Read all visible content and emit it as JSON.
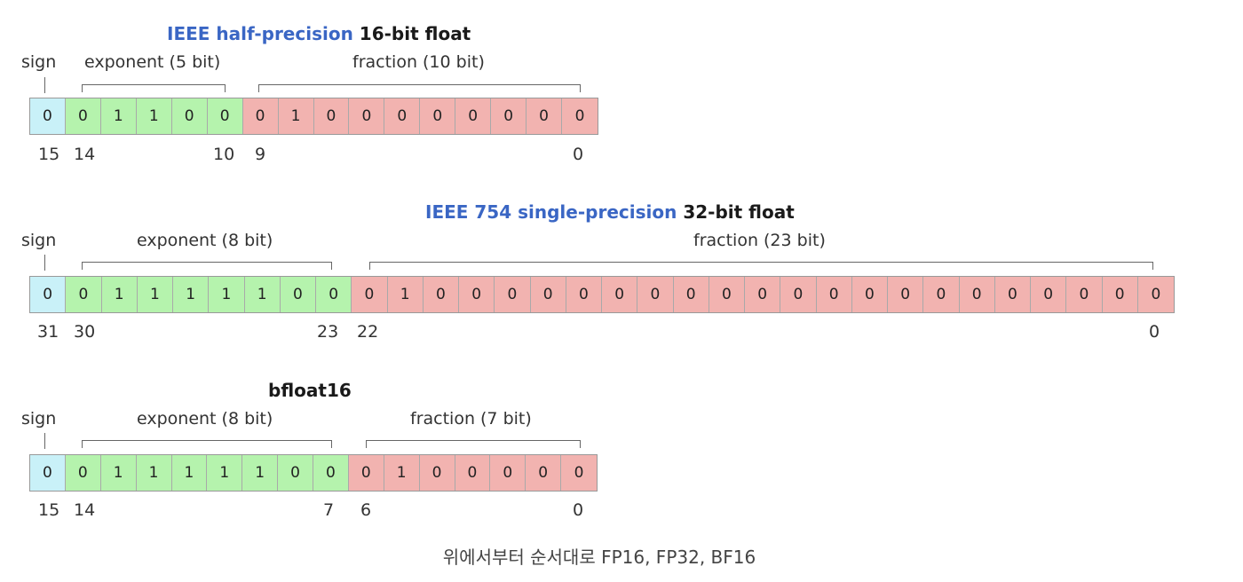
{
  "figures": [
    {
      "title_blue": "IEEE half-precision",
      "title_black": "16-bit float",
      "sign_label": "sign",
      "exponent_label": "exponent (5 bit)",
      "fraction_label": "fraction (10 bit)",
      "sign_bits": [
        "0"
      ],
      "exponent_bits": [
        "0",
        "1",
        "1",
        "0",
        "0"
      ],
      "fraction_bits": [
        "0",
        "1",
        "0",
        "0",
        "0",
        "0",
        "0",
        "0",
        "0",
        "0"
      ],
      "index_labels": {
        "sign": "15",
        "exp_start": "14",
        "exp_end": "10",
        "frac_start": "9",
        "frac_end": "0"
      }
    },
    {
      "title_blue": "IEEE 754 single-precision",
      "title_black": "32-bit float",
      "sign_label": "sign",
      "exponent_label": "exponent (8 bit)",
      "fraction_label": "fraction (23 bit)",
      "sign_bits": [
        "0"
      ],
      "exponent_bits": [
        "0",
        "1",
        "1",
        "1",
        "1",
        "1",
        "0",
        "0"
      ],
      "fraction_bits": [
        "0",
        "1",
        "0",
        "0",
        "0",
        "0",
        "0",
        "0",
        "0",
        "0",
        "0",
        "0",
        "0",
        "0",
        "0",
        "0",
        "0",
        "0",
        "0",
        "0",
        "0",
        "0",
        "0"
      ],
      "index_labels": {
        "sign": "31",
        "exp_start": "30",
        "exp_end": "23",
        "frac_start": "22",
        "frac_end": "0"
      }
    },
    {
      "title_blue": "",
      "title_black": "bfloat16",
      "sign_label": "sign",
      "exponent_label": "exponent (8 bit)",
      "fraction_label": "fraction (7 bit)",
      "sign_bits": [
        "0"
      ],
      "exponent_bits": [
        "0",
        "1",
        "1",
        "1",
        "1",
        "1",
        "0",
        "0"
      ],
      "fraction_bits": [
        "0",
        "1",
        "0",
        "0",
        "0",
        "0",
        "0"
      ],
      "index_labels": {
        "sign": "15",
        "exp_start": "14",
        "exp_end": "7",
        "frac_start": "6",
        "frac_end": "0"
      }
    }
  ],
  "caption": "위에서부터 순서대로 FP16, FP32, BF16",
  "colors": {
    "sign": "#c9f1f8",
    "exponent": "#b5f3ad",
    "fraction": "#f2b3b0",
    "title_blue": "#3a66c4"
  }
}
